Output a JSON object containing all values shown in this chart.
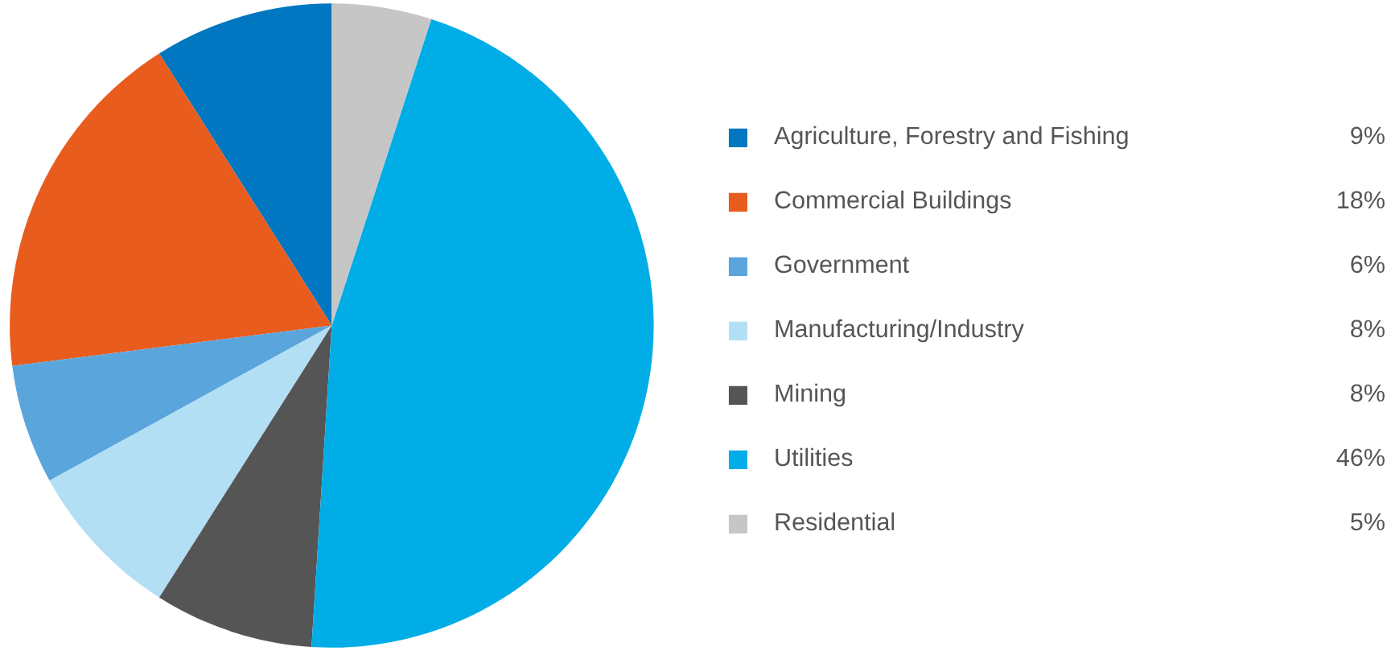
{
  "chart_data": {
    "type": "pie",
    "categories": [
      "Agriculture, Forestry and Fishing",
      "Commercial Buildings",
      "Government",
      "Manufacturing/Industry",
      "Mining",
      "Utilities",
      "Residential"
    ],
    "values": [
      9,
      18,
      6,
      8,
      8,
      46,
      5
    ],
    "value_labels": [
      "9%",
      "18%",
      "6%",
      "8%",
      "8%",
      "46%",
      "5%"
    ],
    "colors": [
      "#0077c0",
      "#e85c1e",
      "#5aa5dc",
      "#b3dff5",
      "#555555",
      "#00ade6",
      "#c6c6c7"
    ],
    "legend": "right"
  }
}
